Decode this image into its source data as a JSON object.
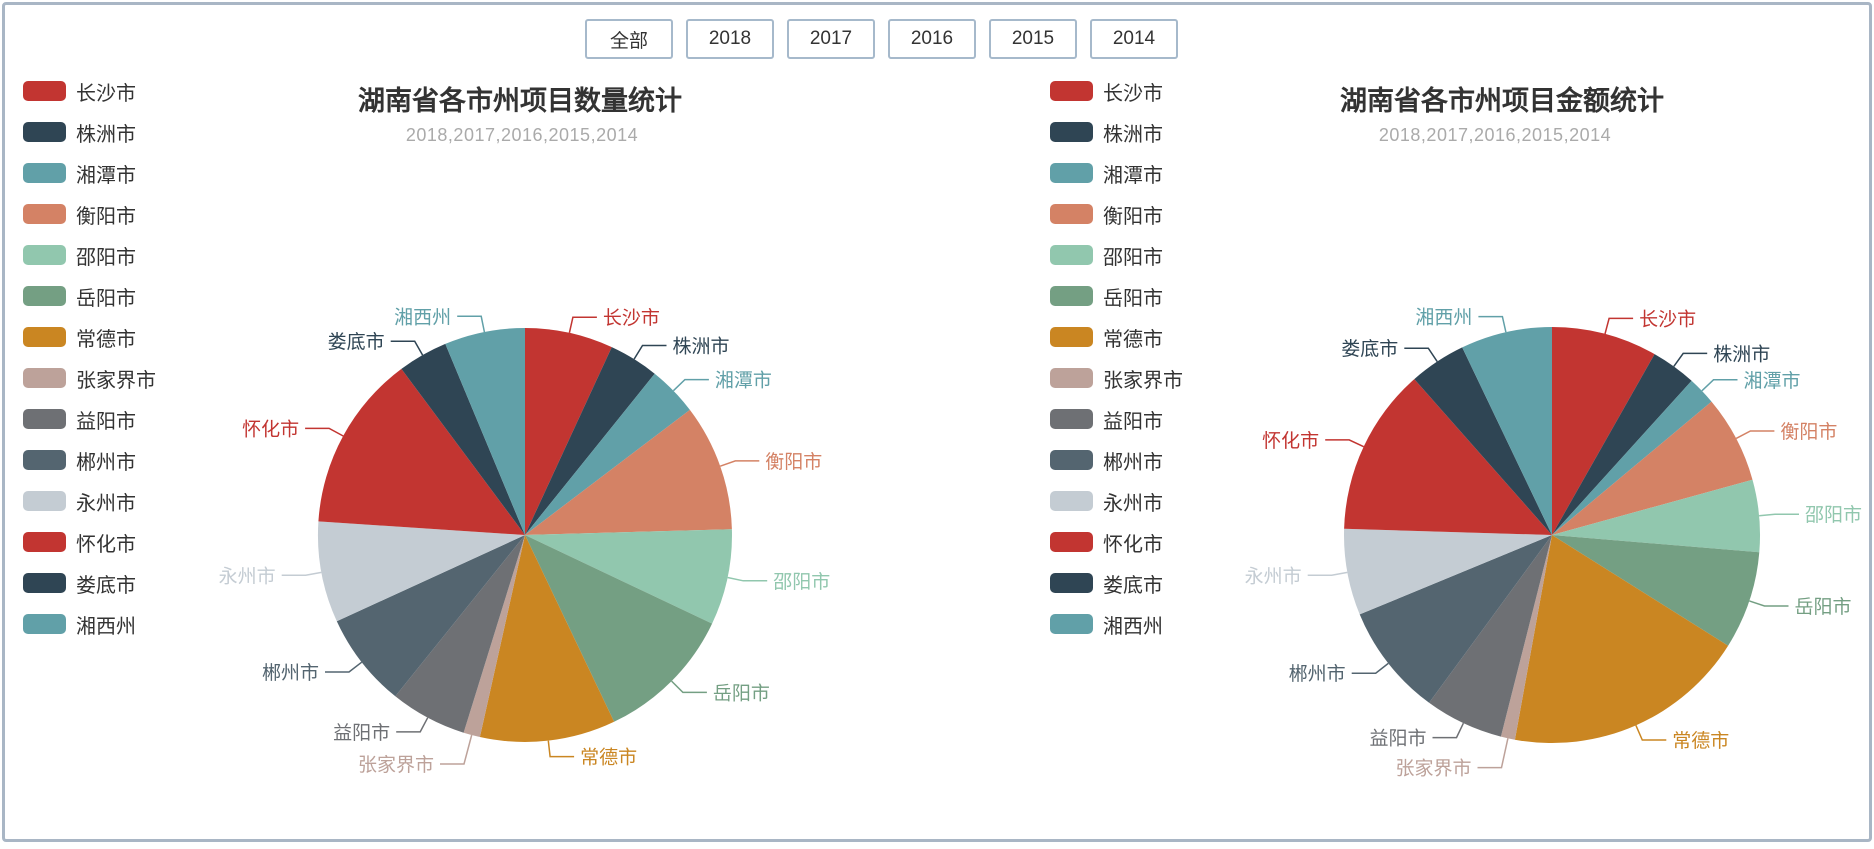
{
  "page": {
    "border_color": "#a9b6c5",
    "background": "#ffffff"
  },
  "filter_bar": {
    "buttons": [
      {
        "label": "全部"
      },
      {
        "label": "2018"
      },
      {
        "label": "2017"
      },
      {
        "label": "2016"
      },
      {
        "label": "2015"
      },
      {
        "label": "2014"
      }
    ]
  },
  "chart_data": [
    {
      "type": "pie",
      "title": "湖南省各市州项目数量统计",
      "subtitle": "2018,2017,2016,2015,2014",
      "legend_position": "left",
      "labels": "outside, leader lines, label text colored as slice",
      "categories": [
        "长沙市",
        "株洲市",
        "湘潭市",
        "衡阳市",
        "邵阳市",
        "岳阳市",
        "常德市",
        "张家界市",
        "益阳市",
        "郴州市",
        "永州市",
        "怀化市",
        "娄底市",
        "湘西州"
      ],
      "values": [
        6.9,
        3.9,
        3.9,
        9.9,
        7.5,
        10.9,
        10.6,
        1.3,
        6.0,
        7.4,
        7.9,
        13.8,
        3.9,
        6.3
      ],
      "value_unit": "share percent, estimated from arc angles",
      "colors": [
        "#c23531",
        "#2f4554",
        "#61a0a8",
        "#d48265",
        "#91c7ae",
        "#749f83",
        "#ca8622",
        "#bda29a",
        "#6e7074",
        "#546570",
        "#c4ccd3",
        "#c23531",
        "#2f4554",
        "#61a0a8"
      ]
    },
    {
      "type": "pie",
      "title": "湖南省各市州项目金额统计",
      "subtitle": "2018,2017,2016,2015,2014",
      "legend_position": "left",
      "labels": "outside, leader lines, label text colored as slice",
      "categories": [
        "长沙市",
        "株洲市",
        "湘潭市",
        "衡阳市",
        "邵阳市",
        "岳阳市",
        "常德市",
        "张家界市",
        "益阳市",
        "郴州市",
        "永州市",
        "怀化市",
        "娄底市",
        "湘西州"
      ],
      "values": [
        8.2,
        3.5,
        2.2,
        6.8,
        5.6,
        7.6,
        18.9,
        1.1,
        6.1,
        8.7,
        6.7,
        13.0,
        4.4,
        7.1
      ],
      "value_unit": "share percent, estimated from arc angles",
      "colors": [
        "#c23531",
        "#2f4554",
        "#61a0a8",
        "#d48265",
        "#91c7ae",
        "#749f83",
        "#ca8622",
        "#bda29a",
        "#6e7074",
        "#546570",
        "#c4ccd3",
        "#c23531",
        "#2f4554",
        "#61a0a8"
      ]
    }
  ]
}
